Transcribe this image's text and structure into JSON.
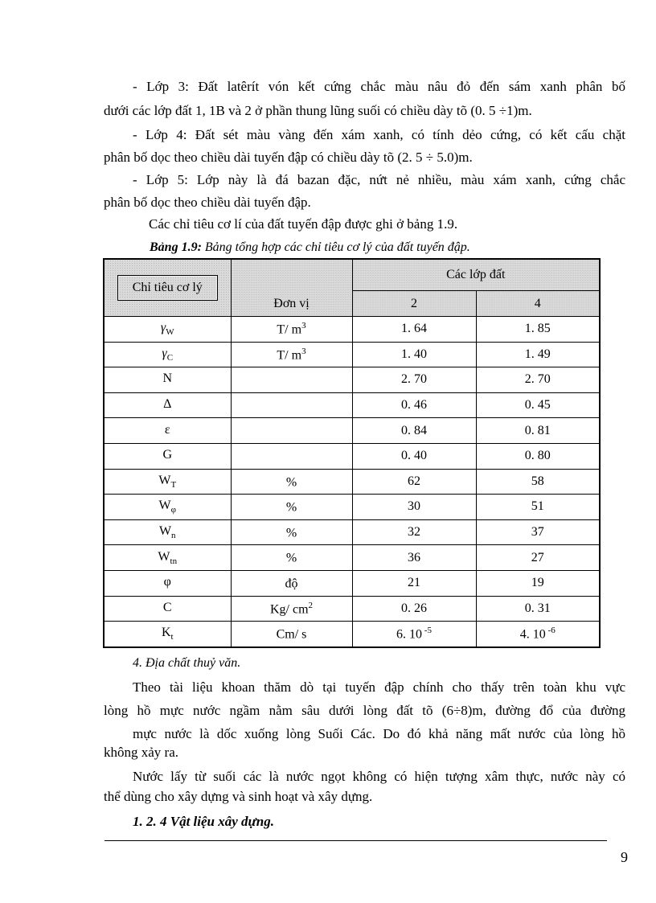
{
  "paragraphs": [
    {
      "lines": [
        "- Lớp 3: Đất latêrít vón kết cứng chắc màu nâu đỏ đến sám xanh phân bố",
        "dưới các lớp đất 1, 1B và 2 ở phần thung lũng suối có chiều dày tõ (0. 5 ÷1)m."
      ]
    },
    {
      "lines": [
        "- Lớp 4: Đất sét màu vàng đến xám xanh, có tính dẻo cứng, có kết cấu chặt",
        "phân bố dọc theo chiều dài tuyến đập có chiều dày tõ (2. 5 ÷ 5.0)m."
      ]
    },
    {
      "lines": [
        "- Lớp 5: Lớp này là đá bazan đặc, nứt nẻ nhiều, màu xám xanh, cứng chắc",
        "phân bố dọc theo chiều dài tuyến đập."
      ]
    },
    {
      "lines": [
        "Các chỉ tiêu cơ lí của đất tuyến đập được ghi ở bảng 1.9."
      ]
    }
  ],
  "table_caption": {
    "label": "Bảng 1.9:",
    "text": " Bảng tổng hợp các chỉ tiêu cơ lý của đất tuyến đập."
  },
  "table": {
    "headers": {
      "indicator": "Chỉ tiêu cơ lý",
      "unit": "Đơn vị",
      "layers": "Các lớp đất",
      "layer_a": "2",
      "layer_b": "4"
    },
    "rows": [
      {
        "sym": "γ",
        "sub": "W",
        "unit": "T/ m",
        "usup": "3",
        "a": "1. 64",
        "b": "1. 85"
      },
      {
        "sym": "γ",
        "sub": "C",
        "unit": "T/ m",
        "usup": "3",
        "a": "1. 40",
        "b": "1. 49"
      },
      {
        "sym": "N",
        "sub": "",
        "unit": "",
        "usup": "",
        "a": "2. 70",
        "b": "2. 70"
      },
      {
        "sym": "Δ",
        "sub": "",
        "unit": "",
        "usup": "",
        "a": "0. 46",
        "b": "0. 45"
      },
      {
        "sym": "ε",
        "sub": "",
        "unit": "",
        "usup": "",
        "a": "0. 84",
        "b": "0. 81"
      },
      {
        "sym": "G",
        "sub": "",
        "unit": "",
        "usup": "",
        "a": "0. 40",
        "b": "0. 80"
      },
      {
        "sym": "W",
        "sub": "T",
        "unit": "%",
        "usup": "",
        "a": "62",
        "b": "58"
      },
      {
        "sym": "W",
        "sub": "φ",
        "unit": "%",
        "usup": "",
        "a": "30",
        "b": "51"
      },
      {
        "sym": "W",
        "sub": "n",
        "unit": "%",
        "usup": "",
        "a": "32",
        "b": "37"
      },
      {
        "sym": "W",
        "sub": "tn",
        "unit": "%",
        "usup": "",
        "a": "36",
        "b": "27"
      },
      {
        "sym": "φ",
        "sub": "",
        "unit": "độ",
        "usup": "",
        "a": "21",
        "b": "19"
      },
      {
        "sym": "C",
        "sub": "",
        "unit": "Kg/ cm",
        "usup": "2",
        "a": "0. 26",
        "b": "0. 31"
      },
      {
        "sym": "K",
        "sub": "t",
        "unit": "Cm/ s",
        "usup": "",
        "a": "6. 10",
        "asup": " -5",
        "b": "4. 10",
        "bsup": " -6"
      }
    ]
  },
  "section_heading": "4. Địa chất thuỷ văn.",
  "para2": [
    "Theo tài liệu khoan thăm dò tại tuyến đập chính cho thấy trên toàn khu vực",
    "lòng hồ mực nước ngầm nằm sâu dưới lòng đất tõ (6÷8)m, đường đổ của đường",
    "mực nước là dốc xuống lòng Suối Các. Do đó khả năng mất nước của lòng hồ",
    "không xảy ra."
  ],
  "para3": [
    "Nước lấy từ suối các là nước ngọt không có hiện tượng xâm thực, nước này có",
    "thể dùng cho xây dựng và sinh hoạt và xây dựng."
  ],
  "subheading": "1. 2. 4 Vật liệu xây dựng.",
  "page_number": "9"
}
